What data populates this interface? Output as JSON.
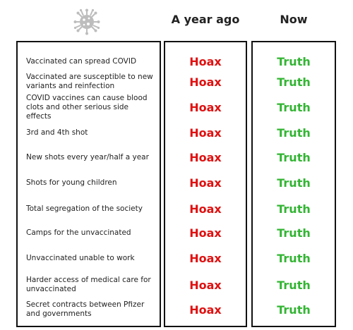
{
  "header": {
    "icon": "virus-icon",
    "col_ago": "A year ago",
    "col_now": "Now"
  },
  "colors": {
    "hoax": "#e01010",
    "truth": "#33b533",
    "border": "#111111"
  },
  "rows": [
    {
      "claim": "Vaccinated can spread COVID",
      "ago": "Hoax",
      "now": "Truth"
    },
    {
      "claim": "Vaccinated are susceptible to new variants and reinfection",
      "ago": "Hoax",
      "now": "Truth"
    },
    {
      "claim": "COVID vaccines can cause blood clots and other serious side effects",
      "ago": "Hoax",
      "now": "Truth"
    },
    {
      "claim": "3rd and 4th shot",
      "ago": "Hoax",
      "now": "Truth"
    },
    {
      "claim": "New shots every year/half a year",
      "ago": "Hoax",
      "now": "Truth"
    },
    {
      "claim": "Shots for young children",
      "ago": "Hoax",
      "now": "Truth"
    },
    {
      "claim": "Total segregation of the society",
      "ago": "Hoax",
      "now": "Truth"
    },
    {
      "claim": "Camps for the unvaccinated",
      "ago": "Hoax",
      "now": "Truth"
    },
    {
      "claim": "Unvaccinated unable to work",
      "ago": "Hoax",
      "now": "Truth"
    },
    {
      "claim": "Harder access of medical care for unvaccinated",
      "ago": "Hoax",
      "now": "Truth"
    },
    {
      "claim": "Secret contracts between Pfizer and governments",
      "ago": "Hoax",
      "now": "Truth"
    }
  ]
}
